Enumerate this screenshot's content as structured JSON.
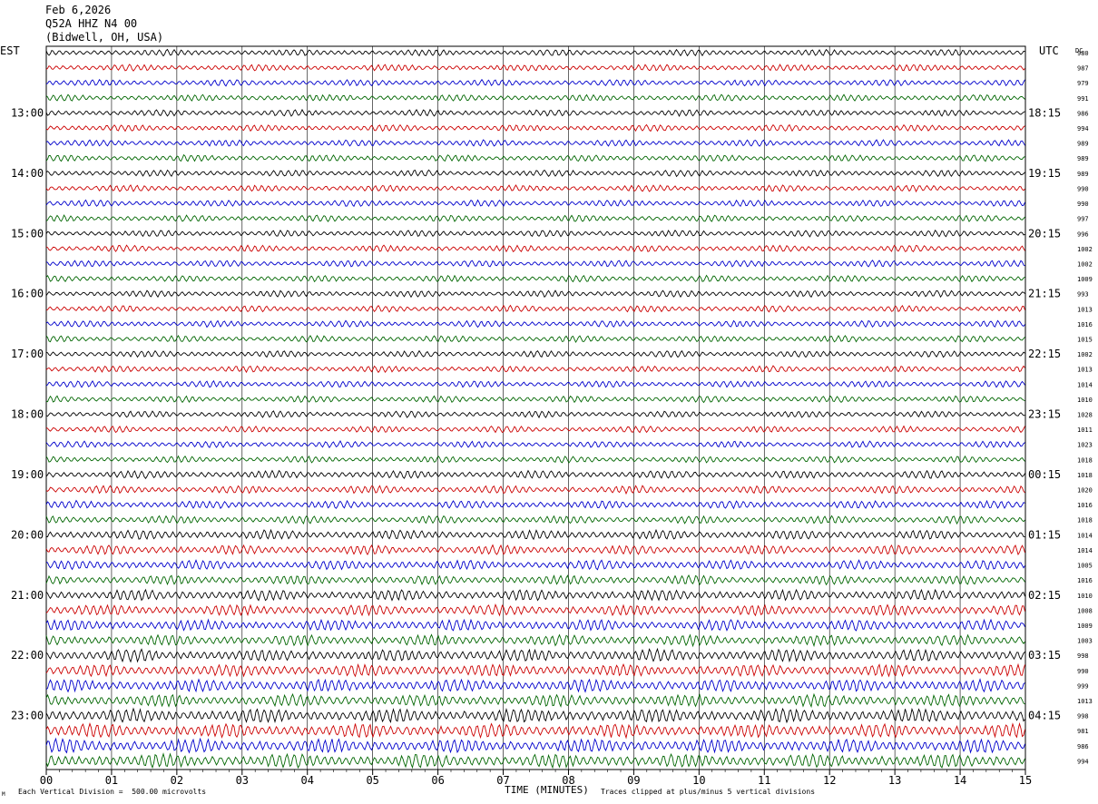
{
  "header": {
    "date": "Feb 6,2026",
    "station": "Q52A HHZ N4 00",
    "location": "(Bidwell, OH, USA)"
  },
  "left_tz": "EST",
  "right_tz": "UTC",
  "dc_header": "DC",
  "footer": {
    "scale": "Each Vertical Division =  500.00 microvolts",
    "clip": "Traces clipped at plus/minus 5 vertical divisions",
    "corner_mark": "M"
  },
  "chart_data": {
    "type": "line",
    "title": "",
    "xlabel": "TIME (MINUTES)",
    "ylabel": "",
    "xlim": [
      0,
      15
    ],
    "x_ticks": [
      "00",
      "01",
      "02",
      "03",
      "04",
      "05",
      "06",
      "07",
      "08",
      "09",
      "10",
      "11",
      "12",
      "13",
      "14",
      "15"
    ],
    "vertical_grid": true,
    "trace_colors": [
      "#000000",
      "#cc0000",
      "#0000cc",
      "#006600"
    ],
    "left_hour_labels": [
      "13:00",
      "14:00",
      "15:00",
      "16:00",
      "17:00",
      "18:00",
      "19:00",
      "20:00",
      "21:00",
      "22:00",
      "23:00"
    ],
    "right_hour_labels": [
      "18:15",
      "19:15",
      "20:15",
      "21:15",
      "22:15",
      "23:15",
      "00:15",
      "01:15",
      "02:15",
      "03:15",
      "04:15"
    ],
    "dc_offsets": [
      "980",
      "987",
      "979",
      "991",
      "986",
      "994",
      "989",
      "989",
      "989",
      "990",
      "990",
      "997",
      "996",
      "1002",
      "1002",
      "1009",
      "993",
      "1013",
      "1016",
      "1015",
      "1002",
      "1013",
      "1014",
      "1010",
      "1028",
      "1011",
      "1023",
      "1018",
      "1018",
      "1020",
      "1016",
      "1018",
      "1014",
      "1014",
      "1005",
      "1016",
      "1010",
      "1008",
      "1009",
      "1003",
      "998",
      "990",
      "999",
      "1013",
      "998",
      "981",
      "986",
      "994"
    ],
    "trace_count": 48,
    "amplitude_notes": "Background noise; amplitude increases in later hours (20:00-23:00 EST)"
  }
}
